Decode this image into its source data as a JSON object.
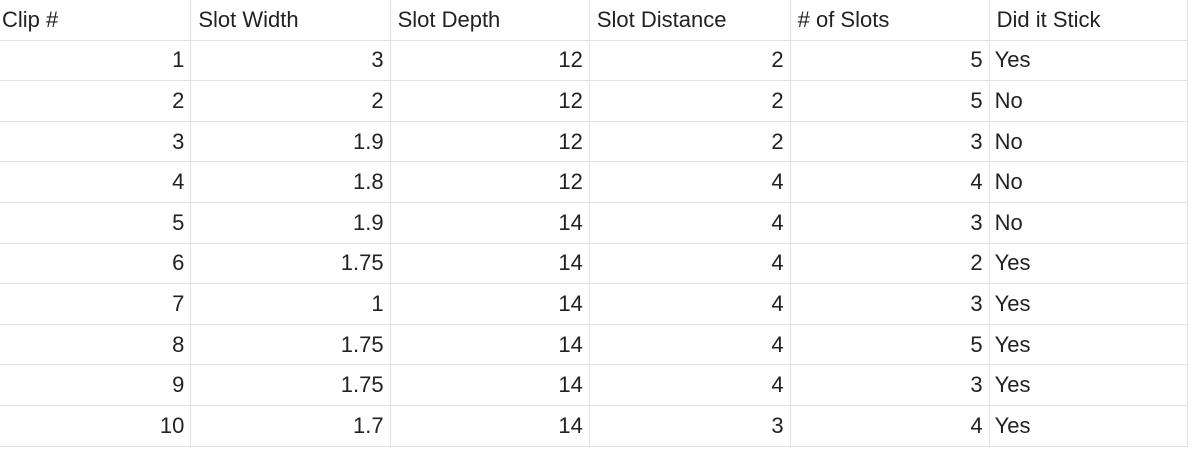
{
  "sheet": {
    "headers": [
      "Clip #",
      "Slot Width",
      "Slot Depth",
      "Slot Distance",
      "# of Slots",
      "Did it Stick"
    ],
    "rows": [
      [
        "1",
        "3",
        "12",
        "2",
        "5",
        "Yes"
      ],
      [
        "2",
        "2",
        "12",
        "2",
        "5",
        "No"
      ],
      [
        "3",
        "1.9",
        "12",
        "2",
        "3",
        "No"
      ],
      [
        "4",
        "1.8",
        "12",
        "4",
        "4",
        "No"
      ],
      [
        "5",
        "1.9",
        "14",
        "4",
        "3",
        "No"
      ],
      [
        "6",
        "1.75",
        "14",
        "4",
        "2",
        "Yes"
      ],
      [
        "7",
        "1",
        "14",
        "4",
        "3",
        "Yes"
      ],
      [
        "8",
        "1.75",
        "14",
        "4",
        "5",
        "Yes"
      ],
      [
        "9",
        "1.75",
        "14",
        "4",
        "3",
        "Yes"
      ],
      [
        "10",
        "1.7",
        "14",
        "3",
        "4",
        "Yes"
      ]
    ]
  },
  "colors": {
    "gridline": "#e2e2e2",
    "text": "#222222",
    "background": "#ffffff"
  }
}
